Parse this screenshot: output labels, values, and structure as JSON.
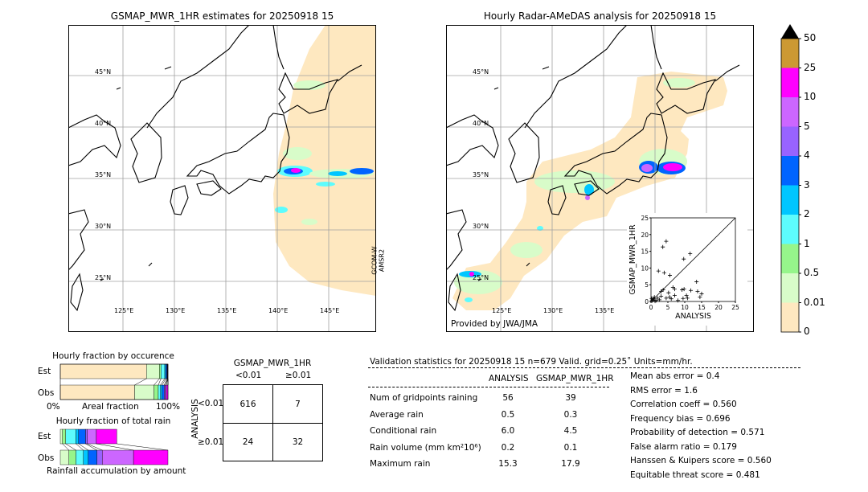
{
  "left_map": {
    "title": "GSMAP_MWR_1HR estimates for 20250918 15",
    "sensor_label_1": "GCOM-W",
    "sensor_label_2": "AMSR2",
    "lat_labels": [
      "45°N",
      "40°N",
      "35°N",
      "30°N",
      "25°N"
    ],
    "lon_labels": [
      "125°E",
      "130°E",
      "135°E",
      "140°E",
      "145°E"
    ]
  },
  "right_map": {
    "title": "Hourly Radar-AMeDAS analysis for 20250918 15",
    "credit": "Provided by JWA/JMA",
    "lat_labels": [
      "45°N",
      "40°N",
      "35°N",
      "30°N",
      "25°N"
    ],
    "lon_labels": [
      "125°E",
      "130°E",
      "135°E"
    ]
  },
  "colorbar": {
    "labels": [
      "0",
      "0.01",
      "0.5",
      "1",
      "2",
      "3",
      "4",
      "5",
      "10",
      "25",
      "50"
    ],
    "colors": [
      "#fee8c0",
      "#d8fcc9",
      "#96f58b",
      "#5dfcfd",
      "#00c6ff",
      "#0064ff",
      "#9863ff",
      "#cc66ff",
      "#ff00ff",
      "#cc9933"
    ],
    "over_color": "#000000"
  },
  "chart_data": [
    {
      "type": "scatter",
      "xlabel": "ANALYSIS",
      "ylabel": "GSMAP_MWR_1HR",
      "xlim": [
        0,
        25
      ],
      "ylim": [
        0,
        25
      ],
      "xticks": [
        "0",
        "5",
        "10",
        "15",
        "20",
        "25"
      ],
      "yticks": [
        "0",
        "5",
        "10",
        "15",
        "20",
        "25"
      ],
      "marker": "+",
      "diagonal": true,
      "points": [
        [
          4.5,
          18
        ],
        [
          3.5,
          16.3
        ],
        [
          11.6,
          14.3
        ],
        [
          9.7,
          12.7
        ],
        [
          2.2,
          9.1
        ],
        [
          3.9,
          8.6
        ],
        [
          5.6,
          7.8
        ],
        [
          13.5,
          5.9
        ],
        [
          6.5,
          4.2
        ],
        [
          7,
          3.7
        ],
        [
          9.2,
          3.5
        ],
        [
          9.8,
          3.7
        ],
        [
          3.6,
          3.5
        ],
        [
          3,
          3
        ],
        [
          13.8,
          3
        ],
        [
          15,
          2.3
        ],
        [
          11.8,
          3.3
        ],
        [
          5.2,
          2.6
        ],
        [
          7,
          1.8
        ],
        [
          10.5,
          1.8
        ],
        [
          14.5,
          1.3
        ],
        [
          10.8,
          1
        ],
        [
          9.5,
          0.9
        ],
        [
          5.5,
          1.3
        ],
        [
          4.5,
          1
        ],
        [
          3,
          1.6
        ],
        [
          2,
          1
        ],
        [
          1,
          1.3
        ],
        [
          0.5,
          0.5
        ],
        [
          1.5,
          0.3
        ],
        [
          0.3,
          0.2
        ],
        [
          2.5,
          0.5
        ],
        [
          6,
          0.8
        ],
        [
          8,
          0.3
        ],
        [
          0.8,
          0.8
        ],
        [
          1.2,
          0.1
        ],
        [
          0.2,
          0.9
        ]
      ]
    },
    {
      "type": "bar",
      "title": "Hourly fraction by occurence",
      "xlabel": "Areal fraction",
      "x_left_label": "0%",
      "x_right_label": "100%",
      "categories": [
        "Est",
        "Obs"
      ],
      "series_colors": [
        "#fee8c0",
        "#d8fcc9",
        "#96f58b",
        "#5dfcfd",
        "#00c6ff",
        "#0064ff",
        "#9863ff",
        "#cc66ff",
        "#ff00ff",
        "#cc9933"
      ],
      "values": {
        "Est": [
          0.8,
          0.12,
          0.015,
          0.035,
          0.01,
          0.01,
          0.005,
          0.003,
          0.002,
          0
        ],
        "Obs": [
          0.69,
          0.18,
          0.04,
          0.02,
          0.015,
          0.02,
          0.01,
          0.01,
          0.015,
          0
        ]
      }
    },
    {
      "type": "bar",
      "title": "Hourly fraction of total rain",
      "xlabel": "Rainfall accumulation by amount",
      "categories": [
        "Est",
        "Obs"
      ],
      "series_colors": [
        "#d8fcc9",
        "#96f58b",
        "#5dfcfd",
        "#00c6ff",
        "#0064ff",
        "#9863ff",
        "#cc66ff",
        "#ff00ff"
      ],
      "values": {
        "Est": [
          0.02,
          0.03,
          0.095,
          0.025,
          0.065,
          0.015,
          0.085,
          0.19
        ],
        "Obs": [
          0.08,
          0.065,
          0.07,
          0.045,
          0.08,
          0.05,
          0.29,
          0.32
        ]
      }
    },
    {
      "type": "table",
      "title": "GSMAP_MWR_1HR",
      "col_labels": [
        "<0.01",
        "≥0.01"
      ],
      "row_axis_label": "ANALYSIS",
      "row_labels": [
        "<0.01",
        "≥0.01"
      ],
      "cells": [
        [
          "616",
          "7"
        ],
        [
          "24",
          "32"
        ]
      ]
    }
  ],
  "stats": {
    "header": "Validation statistics for 20250918 15  n=679 Valid. grid=0.25˚ Units=mm/hr.",
    "col_analysis": "ANALYSIS",
    "col_gsmap": "GSMAP_MWR_1HR",
    "rows": [
      {
        "label": "Num of gridpoints raining",
        "analysis": "56",
        "gsmap": "39"
      },
      {
        "label": "Average rain",
        "analysis": "0.5",
        "gsmap": "0.3"
      },
      {
        "label": "Conditional rain",
        "analysis": "6.0",
        "gsmap": "4.5"
      },
      {
        "label": "Rain volume (mm km²10⁶)",
        "analysis": "0.2",
        "gsmap": "0.1"
      },
      {
        "label": "Maximum rain",
        "analysis": "15.3",
        "gsmap": "17.9"
      }
    ],
    "scores": [
      "Mean abs error =    0.4",
      "RMS error =    1.6",
      "Correlation coeff =  0.560",
      "Frequency bias =  0.696",
      "Probability of detection =  0.571",
      "False alarm ratio =  0.179",
      "Hanssen & Kuipers score =  0.560",
      "Equitable threat score =  0.481"
    ]
  }
}
